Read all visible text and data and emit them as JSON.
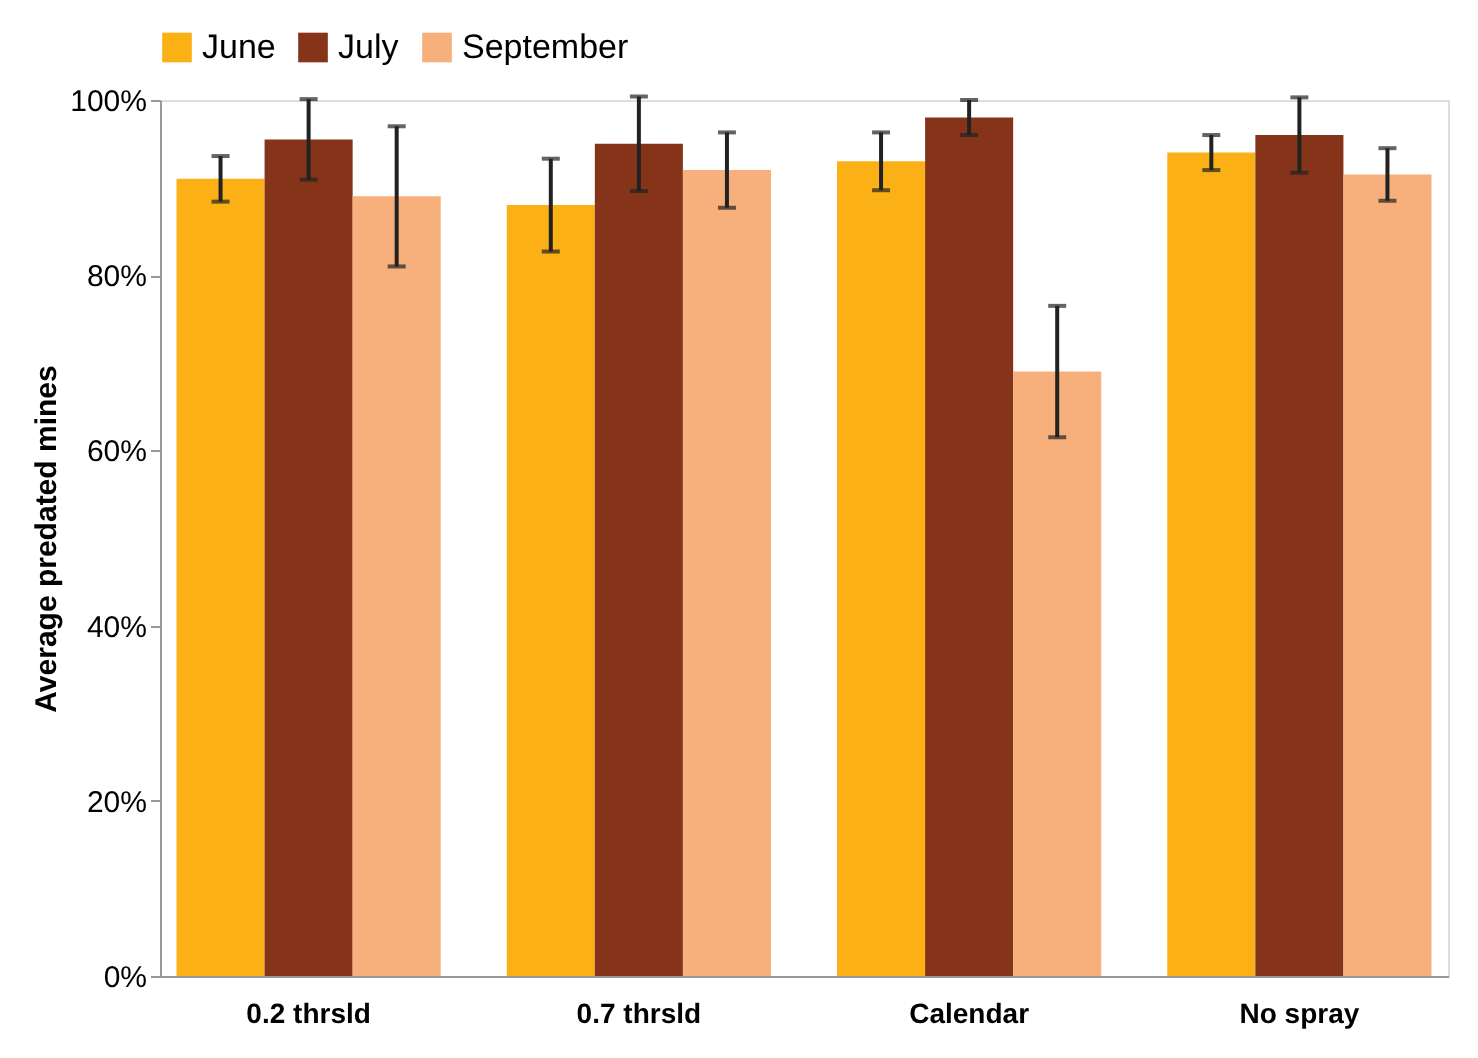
{
  "chart_data": {
    "type": "bar",
    "ylabel": "Average predated mines",
    "categories": [
      "0.2 thrsld",
      "0.7 thrsld",
      "Calendar",
      "No spray"
    ],
    "series": [
      {
        "name": "June",
        "color": "#fbb116",
        "values": [
          91,
          88,
          93,
          94
        ],
        "errors": [
          2.6,
          5.3,
          3.3,
          2
        ]
      },
      {
        "name": "July",
        "color": "#85341a",
        "values": [
          95.5,
          95,
          98,
          96
        ],
        "errors": [
          4.6,
          5.4,
          2,
          4.3
        ]
      },
      {
        "name": "September",
        "color": "#f7b07c",
        "values": [
          89,
          92,
          69,
          91.5
        ],
        "errors": [
          8,
          4.3,
          7.5,
          3
        ]
      }
    ],
    "ylim": [
      0,
      100
    ],
    "yticks": [
      {
        "value": 0,
        "label": "0%"
      },
      {
        "value": 20,
        "label": "20%"
      },
      {
        "value": 40,
        "label": "40%"
      },
      {
        "value": 60,
        "label": "60%"
      },
      {
        "value": 80,
        "label": "80%"
      },
      {
        "value": 100,
        "label": "100%"
      }
    ],
    "grid": false,
    "legend": "top"
  }
}
